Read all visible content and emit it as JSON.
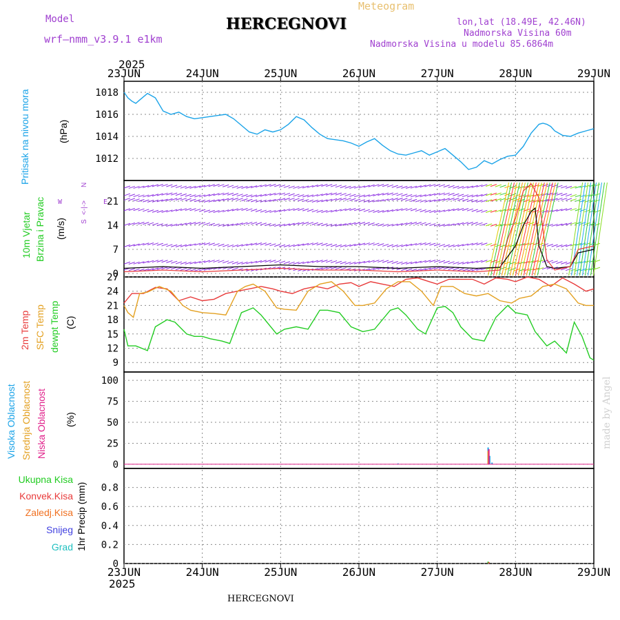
{
  "header": {
    "model_label": "Model",
    "model_name": "wrf–nmm_v3.9.1  e1km",
    "title": "HERCEGNOVI",
    "meteogram": "Meteogram",
    "coords": "lon,lat (18.49E, 42.46N)",
    "altitude": "Nadmorska Visina 60m",
    "model_altitude": "Nadmorska Visina u modelu 85.6864m",
    "year_top": "2025",
    "year_bottom": "2025",
    "footer_title": "HERCEGNOVI",
    "watermark": "made by Angel"
  },
  "colors": {
    "pressure": "#1aa3e8",
    "temp2m": "#e83a3a",
    "sfc": "#e3a020",
    "dewpt": "#22cc22",
    "wind_barb": "#8a2be2",
    "label_purple": "#a040d0"
  },
  "x_axis": {
    "dates": [
      "23JUN",
      "24JUN",
      "25JUN",
      "26JUN",
      "27JUN",
      "28JUN",
      "29JUN"
    ]
  },
  "panel_labels": {
    "pressure": [
      "Pritisak na nivou mora",
      "(hPa)"
    ],
    "wind": [
      "10m Vjetar",
      "Brzina i Pravac",
      "(m/s)"
    ],
    "wind_compass": [
      "N",
      "<-|->",
      "W",
      "S",
      "E"
    ],
    "temp": [
      "2m Temp",
      "SFC Temp",
      "dewpt Temp",
      "(C)"
    ],
    "cloud": [
      "Visoka Oblacnost",
      "Srednja Oblacnost",
      "Niska Oblacnost",
      "(%)"
    ],
    "precip_legend": [
      "Ukupna Kisa",
      "Konvek.Kisa",
      "Zaledj.Kisa",
      "Snijeg",
      "Grad"
    ],
    "precip_unit": "1hr Precip (mm)"
  },
  "chart_data": [
    {
      "type": "line",
      "name": "pressure",
      "x_unit": "days since 23JUN 00UTC",
      "ylim": [
        1010,
        1019
      ],
      "yticks": [
        "1012",
        "1014",
        "1016",
        "1018"
      ],
      "x": [
        0,
        0.05,
        0.1,
        0.15,
        0.2,
        0.3,
        0.4,
        0.5,
        0.6,
        0.7,
        0.8,
        0.9,
        1.0,
        1.1,
        1.2,
        1.3,
        1.4,
        1.5,
        1.6,
        1.7,
        1.8,
        1.9,
        2.0,
        2.1,
        2.2,
        2.3,
        2.4,
        2.5,
        2.6,
        2.7,
        2.8,
        2.9,
        3.0,
        3.1,
        3.2,
        3.3,
        3.4,
        3.5,
        3.6,
        3.7,
        3.8,
        3.9,
        4.0,
        4.1,
        4.2,
        4.3,
        4.4,
        4.5,
        4.6,
        4.7,
        4.8,
        4.9,
        5.0,
        5.1,
        5.2,
        5.3,
        5.35,
        5.4,
        5.45,
        5.5,
        5.6,
        5.7,
        5.8,
        5.9,
        6.0
      ],
      "y": [
        1018.0,
        1017.5,
        1017.2,
        1017.0,
        1017.3,
        1017.9,
        1017.5,
        1016.3,
        1016.0,
        1016.2,
        1015.8,
        1015.6,
        1015.7,
        1015.8,
        1015.9,
        1016.0,
        1015.6,
        1015.0,
        1014.4,
        1014.2,
        1014.6,
        1014.4,
        1014.6,
        1015.1,
        1015.8,
        1015.5,
        1014.8,
        1014.2,
        1013.8,
        1013.7,
        1013.6,
        1013.4,
        1013.1,
        1013.5,
        1013.8,
        1013.2,
        1012.7,
        1012.4,
        1012.3,
        1012.5,
        1012.7,
        1012.3,
        1012.6,
        1012.9,
        1012.3,
        1011.7,
        1011.0,
        1011.2,
        1011.8,
        1011.5,
        1011.9,
        1012.2,
        1012.3,
        1013.1,
        1014.3,
        1015.1,
        1015.2,
        1015.1,
        1014.9,
        1014.5,
        1014.1,
        1014.0,
        1014.3,
        1014.5,
        1014.7
      ]
    },
    {
      "type": "line",
      "name": "wind",
      "x_unit": "days since 23JUN 00UTC",
      "ylim": [
        -1,
        27
      ],
      "yticks": [
        "0",
        "7",
        "14",
        "21"
      ],
      "series": [
        {
          "name": "wind_speed",
          "x": [
            0,
            0.5,
            1,
            1.5,
            2,
            2.5,
            3,
            3.5,
            4,
            4.5,
            4.8,
            5.0,
            5.1,
            5.2,
            5.25,
            5.3,
            5.4,
            5.5,
            5.7,
            5.8,
            6.0
          ],
          "y": [
            1.5,
            2,
            1.5,
            2,
            2.5,
            2,
            2,
            1.5,
            2,
            1.5,
            1.8,
            8,
            14,
            18,
            19,
            8,
            2,
            1.5,
            2,
            6,
            7
          ]
        },
        {
          "name": "wind_gust",
          "x": [
            0,
            0.5,
            1,
            1.5,
            2,
            2.5,
            3,
            3.5,
            4,
            4.5,
            4.8,
            4.9,
            5.0,
            5.1,
            5.2,
            5.3,
            5.4,
            5.5,
            5.7,
            5.8,
            6.0
          ],
          "y": [
            0.5,
            1,
            0.5,
            1,
            1.5,
            1,
            1,
            0.5,
            1,
            0.5,
            1.0,
            10,
            16,
            24,
            26,
            22,
            4,
            1,
            2,
            7,
            8
          ]
        }
      ],
      "barb_rows": [
        1,
        3,
        8,
        14,
        18,
        21,
        22.5,
        25
      ]
    },
    {
      "type": "line",
      "name": "temperature",
      "x_unit": "days since 23JUN 00UTC",
      "ylim": [
        7,
        27
      ],
      "yticks": [
        "9",
        "12",
        "15",
        "18",
        "21",
        "24",
        "27"
      ],
      "series": [
        {
          "name": "2m Temp",
          "x": [
            0,
            0.1,
            0.25,
            0.4,
            0.55,
            0.7,
            0.85,
            1.0,
            1.15,
            1.3,
            1.45,
            1.6,
            1.75,
            1.9,
            2.0,
            2.15,
            2.3,
            2.45,
            2.6,
            2.75,
            2.9,
            3.0,
            3.15,
            3.3,
            3.45,
            3.6,
            3.75,
            3.9,
            4.0,
            4.15,
            4.3,
            4.45,
            4.6,
            4.75,
            4.9,
            5.0,
            5.15,
            5.3,
            5.45,
            5.6,
            5.75,
            5.9,
            6.0
          ],
          "y": [
            21.5,
            23.5,
            23.5,
            24.8,
            24.5,
            22.0,
            22.8,
            22.0,
            22.3,
            23.5,
            24.0,
            24.5,
            25.0,
            24.5,
            24.0,
            23.5,
            24.5,
            25.0,
            24.5,
            25.5,
            25.8,
            25.0,
            26.0,
            25.5,
            25.0,
            26.5,
            26.8,
            26.0,
            25.5,
            26.5,
            26.5,
            26.5,
            25.5,
            26.8,
            26.5,
            26.0,
            27.0,
            26.5,
            25.0,
            26.8,
            25.5,
            24.0,
            24.5
          ]
        },
        {
          "name": "SFC Temp",
          "x": [
            0,
            0.05,
            0.12,
            0.2,
            0.3,
            0.45,
            0.6,
            0.75,
            0.85,
            1.0,
            1.15,
            1.3,
            1.45,
            1.55,
            1.65,
            1.8,
            1.95,
            2.05,
            2.2,
            2.35,
            2.5,
            2.65,
            2.8,
            2.95,
            3.05,
            3.2,
            3.35,
            3.5,
            3.65,
            3.8,
            3.95,
            4.05,
            4.2,
            4.35,
            4.5,
            4.65,
            4.8,
            4.95,
            5.05,
            5.2,
            5.35,
            5.5,
            5.65,
            5.8,
            5.9,
            6.0
          ],
          "y": [
            21,
            19.5,
            18.5,
            23.5,
            23.8,
            25.0,
            24.0,
            21.0,
            20.0,
            19.5,
            19.3,
            19.0,
            24.0,
            25.0,
            25.5,
            24.0,
            20.5,
            20.2,
            20.0,
            24.0,
            25.5,
            26.0,
            24.0,
            21.0,
            21.0,
            21.5,
            24.5,
            26.0,
            26.0,
            24.0,
            21.0,
            25.0,
            25.0,
            23.5,
            23.0,
            23.5,
            22.0,
            21.5,
            22.5,
            23.0,
            25.0,
            25.5,
            24.5,
            21.5,
            21.0,
            21.0
          ]
        },
        {
          "name": "dewpt Temp",
          "x": [
            0,
            0.05,
            0.15,
            0.3,
            0.4,
            0.55,
            0.65,
            0.8,
            0.9,
            1.0,
            1.1,
            1.25,
            1.35,
            1.5,
            1.65,
            1.75,
            1.95,
            2.05,
            2.2,
            2.35,
            2.5,
            2.6,
            2.75,
            2.9,
            3.05,
            3.2,
            3.4,
            3.5,
            3.6,
            3.75,
            3.85,
            4.0,
            4.1,
            4.2,
            4.3,
            4.45,
            4.6,
            4.75,
            4.9,
            5.0,
            5.15,
            5.25,
            5.4,
            5.5,
            5.65,
            5.75,
            5.85,
            5.95,
            6.0
          ],
          "y": [
            16,
            12.5,
            12.5,
            11.5,
            16.5,
            18.0,
            17.5,
            15.0,
            14.5,
            14.5,
            14.0,
            13.5,
            13.0,
            19.5,
            20.5,
            19.0,
            15.0,
            16.0,
            16.5,
            16.0,
            20.0,
            20.0,
            19.5,
            16.5,
            15.5,
            16.0,
            20.0,
            20.5,
            19.0,
            16.0,
            15.0,
            20.5,
            20.8,
            19.5,
            16.5,
            14.0,
            13.5,
            18.5,
            21.0,
            19.5,
            19.0,
            15.5,
            12.5,
            13.5,
            11.0,
            17.5,
            14.5,
            10.0,
            9.5
          ]
        }
      ]
    },
    {
      "type": "bar",
      "name": "cloud",
      "ylim": [
        -5,
        110
      ],
      "yticks": [
        "0",
        "25",
        "50",
        "75",
        "100"
      ],
      "series": [
        {
          "name": "Visoka Oblacnost",
          "x": [
            3.5,
            4.65,
            4.67,
            4.7
          ],
          "values": [
            1,
            20,
            10,
            2
          ]
        },
        {
          "name": "Srednja Oblacnost",
          "x": [
            4.65
          ],
          "values": [
            16
          ]
        },
        {
          "name": "Niska Oblacnost",
          "x": [
            4.66
          ],
          "values": [
            18
          ]
        }
      ]
    },
    {
      "type": "bar",
      "name": "precip",
      "ylim": [
        0,
        1.0
      ],
      "yticks": [
        "0",
        "0.2",
        "0.4",
        "0.6",
        "0.8"
      ],
      "series": [
        {
          "name": "Ukupna Kisa",
          "x": [
            4.65
          ],
          "values": [
            0.02
          ]
        },
        {
          "name": "Konvek.Kisa",
          "x": [
            4.66
          ],
          "values": [
            0.015
          ]
        }
      ]
    }
  ]
}
